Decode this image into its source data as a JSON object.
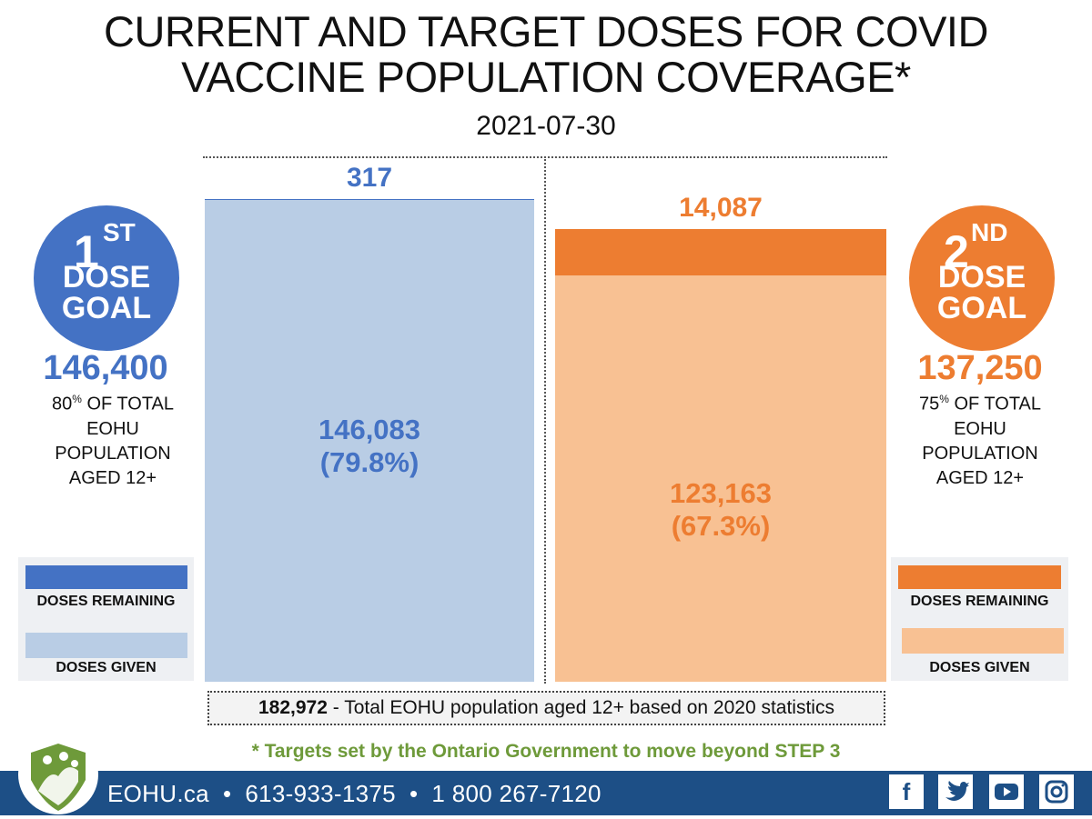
{
  "title": "CURRENT AND TARGET DOSES FOR COVID\nVACCINE POPULATION COVERAGE*",
  "date": "2021-07-30",
  "colors": {
    "first_remaining": "#4472c4",
    "first_given": "#b9cde5",
    "second_remaining": "#ed7d31",
    "second_given": "#f8c193",
    "note_green": "#6e9a3a",
    "footer_blue": "#1d4f86"
  },
  "first_dose_goal": {
    "ordinal_number": "1",
    "ordinal_suffix": "ST",
    "dose_word": "DOSE",
    "goal_word": "GOAL",
    "value": "146,400",
    "percent": "80",
    "percent_sign": "%",
    "desc_line1": " OF TOTAL",
    "desc_line2": "EOHU",
    "desc_line3": "POPULATION",
    "desc_line4": "AGED 12+"
  },
  "second_dose_goal": {
    "ordinal_number": "2",
    "ordinal_suffix": "ND",
    "dose_word": "DOSE",
    "goal_word": "GOAL",
    "value": "137,250",
    "percent": "75",
    "percent_sign": "%",
    "desc_line1": " OF TOTAL",
    "desc_line2": "EOHU",
    "desc_line3": "POPULATION",
    "desc_line4": "AGED 12+"
  },
  "legend": {
    "remaining": "DOSES REMAINING",
    "given": "DOSES GIVEN"
  },
  "chart_data": {
    "type": "bar",
    "stacked": true,
    "categories": [
      "1st dose",
      "2nd dose"
    ],
    "series": [
      {
        "name": "DOSES GIVEN",
        "values": [
          146083,
          123163
        ],
        "labels": [
          "146,083\n(79.8%)",
          "123,163\n(67.3%)"
        ]
      },
      {
        "name": "DOSES REMAINING",
        "values": [
          317,
          14087
        ],
        "labels": [
          "317",
          "14,087"
        ]
      }
    ],
    "ylim": [
      0,
      146400
    ]
  },
  "total_box": {
    "value": "182,972",
    "text": " - Total EOHU population aged 12+ based on 2020 statistics"
  },
  "note": "* Targets set by the Ontario Government to move beyond STEP 3",
  "footer": {
    "text": "EOHU.ca  •  613-933-1375  •  1 800 267-7120",
    "social_icons": [
      "facebook-icon",
      "twitter-icon",
      "youtube-icon",
      "instagram-icon"
    ]
  }
}
